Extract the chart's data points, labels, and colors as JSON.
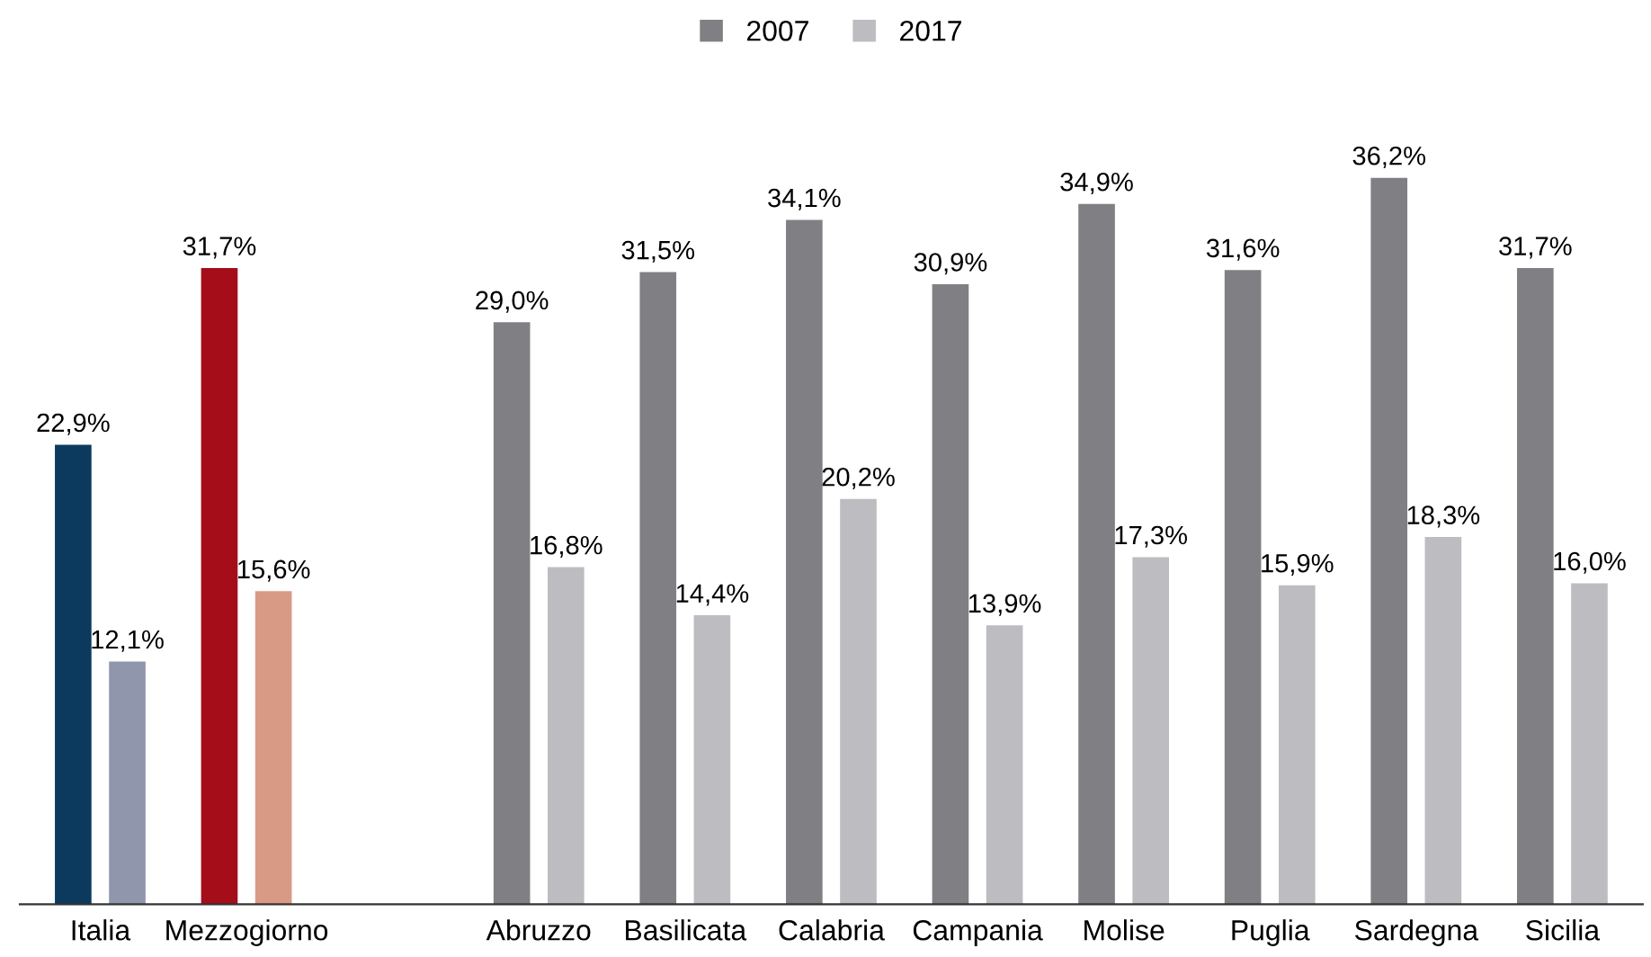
{
  "chart_data": {
    "type": "bar",
    "categories": [
      "Italia",
      "Mezzogiorno",
      null,
      "Abruzzo",
      "Basilicata",
      "Calabria",
      "Campania",
      "Molise",
      "Puglia",
      "Sardegna",
      "Sicilia"
    ],
    "series": [
      {
        "name": "2007",
        "color": "#808084",
        "colors": [
          "#0b3a5e",
          "#a50d18",
          null,
          "#808084",
          "#808084",
          "#808084",
          "#808084",
          "#808084",
          "#808084",
          "#808084",
          "#808084"
        ],
        "values": [
          22.9,
          31.7,
          null,
          29.0,
          31.5,
          34.1,
          30.9,
          34.9,
          31.6,
          36.2,
          31.7
        ],
        "value_labels": [
          "22,9%",
          "31,7%",
          null,
          "29,0%",
          "31,5%",
          "34,1%",
          "30,9%",
          "34,9%",
          "31,6%",
          "36,2%",
          "31,7%"
        ]
      },
      {
        "name": "2017",
        "color": "#bdbdc1",
        "colors": [
          "#9097ad",
          "#d89a85",
          null,
          "#bdbdc1",
          "#bdbdc1",
          "#bdbdc1",
          "#bdbdc1",
          "#bdbdc1",
          "#bdbdc1",
          "#bdbdc1",
          "#bdbdc1"
        ],
        "values": [
          12.1,
          15.6,
          null,
          16.8,
          14.4,
          20.2,
          13.9,
          17.3,
          15.9,
          18.3,
          16.0
        ],
        "value_labels": [
          "12,1%",
          "15,6%",
          null,
          "16,8%",
          "14,4%",
          "20,2%",
          "13,9%",
          "17,3%",
          "15,9%",
          "18,3%",
          "16,0%"
        ]
      }
    ],
    "legend": "top",
    "grid": false
  }
}
